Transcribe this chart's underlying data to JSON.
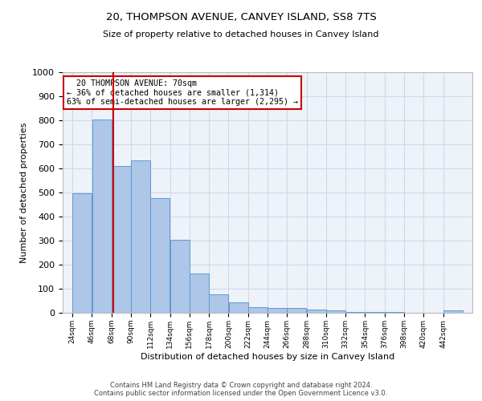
{
  "title": "20, THOMPSON AVENUE, CANVEY ISLAND, SS8 7TS",
  "subtitle": "Size of property relative to detached houses in Canvey Island",
  "xlabel": "Distribution of detached houses by size in Canvey Island",
  "ylabel": "Number of detached properties",
  "footer_line1": "Contains HM Land Registry data © Crown copyright and database right 2024.",
  "footer_line2": "Contains public sector information licensed under the Open Government Licence v3.0.",
  "annotation_line1": "20 THOMPSON AVENUE: 70sqm",
  "annotation_line2": "← 36% of detached houses are smaller (1,314)",
  "annotation_line3": "63% of semi-detached houses are larger (2,295) →",
  "property_size": 70,
  "bar_edges": [
    24,
    46,
    68,
    90,
    112,
    134,
    156,
    178,
    200,
    222,
    244,
    266,
    288,
    310,
    332,
    354,
    376,
    398,
    420,
    442,
    464
  ],
  "bar_heights": [
    497,
    803,
    610,
    633,
    477,
    302,
    163,
    78,
    45,
    24,
    21,
    20,
    12,
    10,
    5,
    3,
    2,
    1,
    0,
    10
  ],
  "bar_color": "#aec6e8",
  "bar_edge_color": "#5b9bd5",
  "vline_color": "#cc0000",
  "vline_x": 70,
  "annotation_box_color": "#cc0000",
  "grid_color": "#d0d8e8",
  "bg_color": "#eef2f9",
  "ylim": [
    0,
    1000
  ],
  "yticks": [
    0,
    100,
    200,
    300,
    400,
    500,
    600,
    700,
    800,
    900,
    1000
  ]
}
